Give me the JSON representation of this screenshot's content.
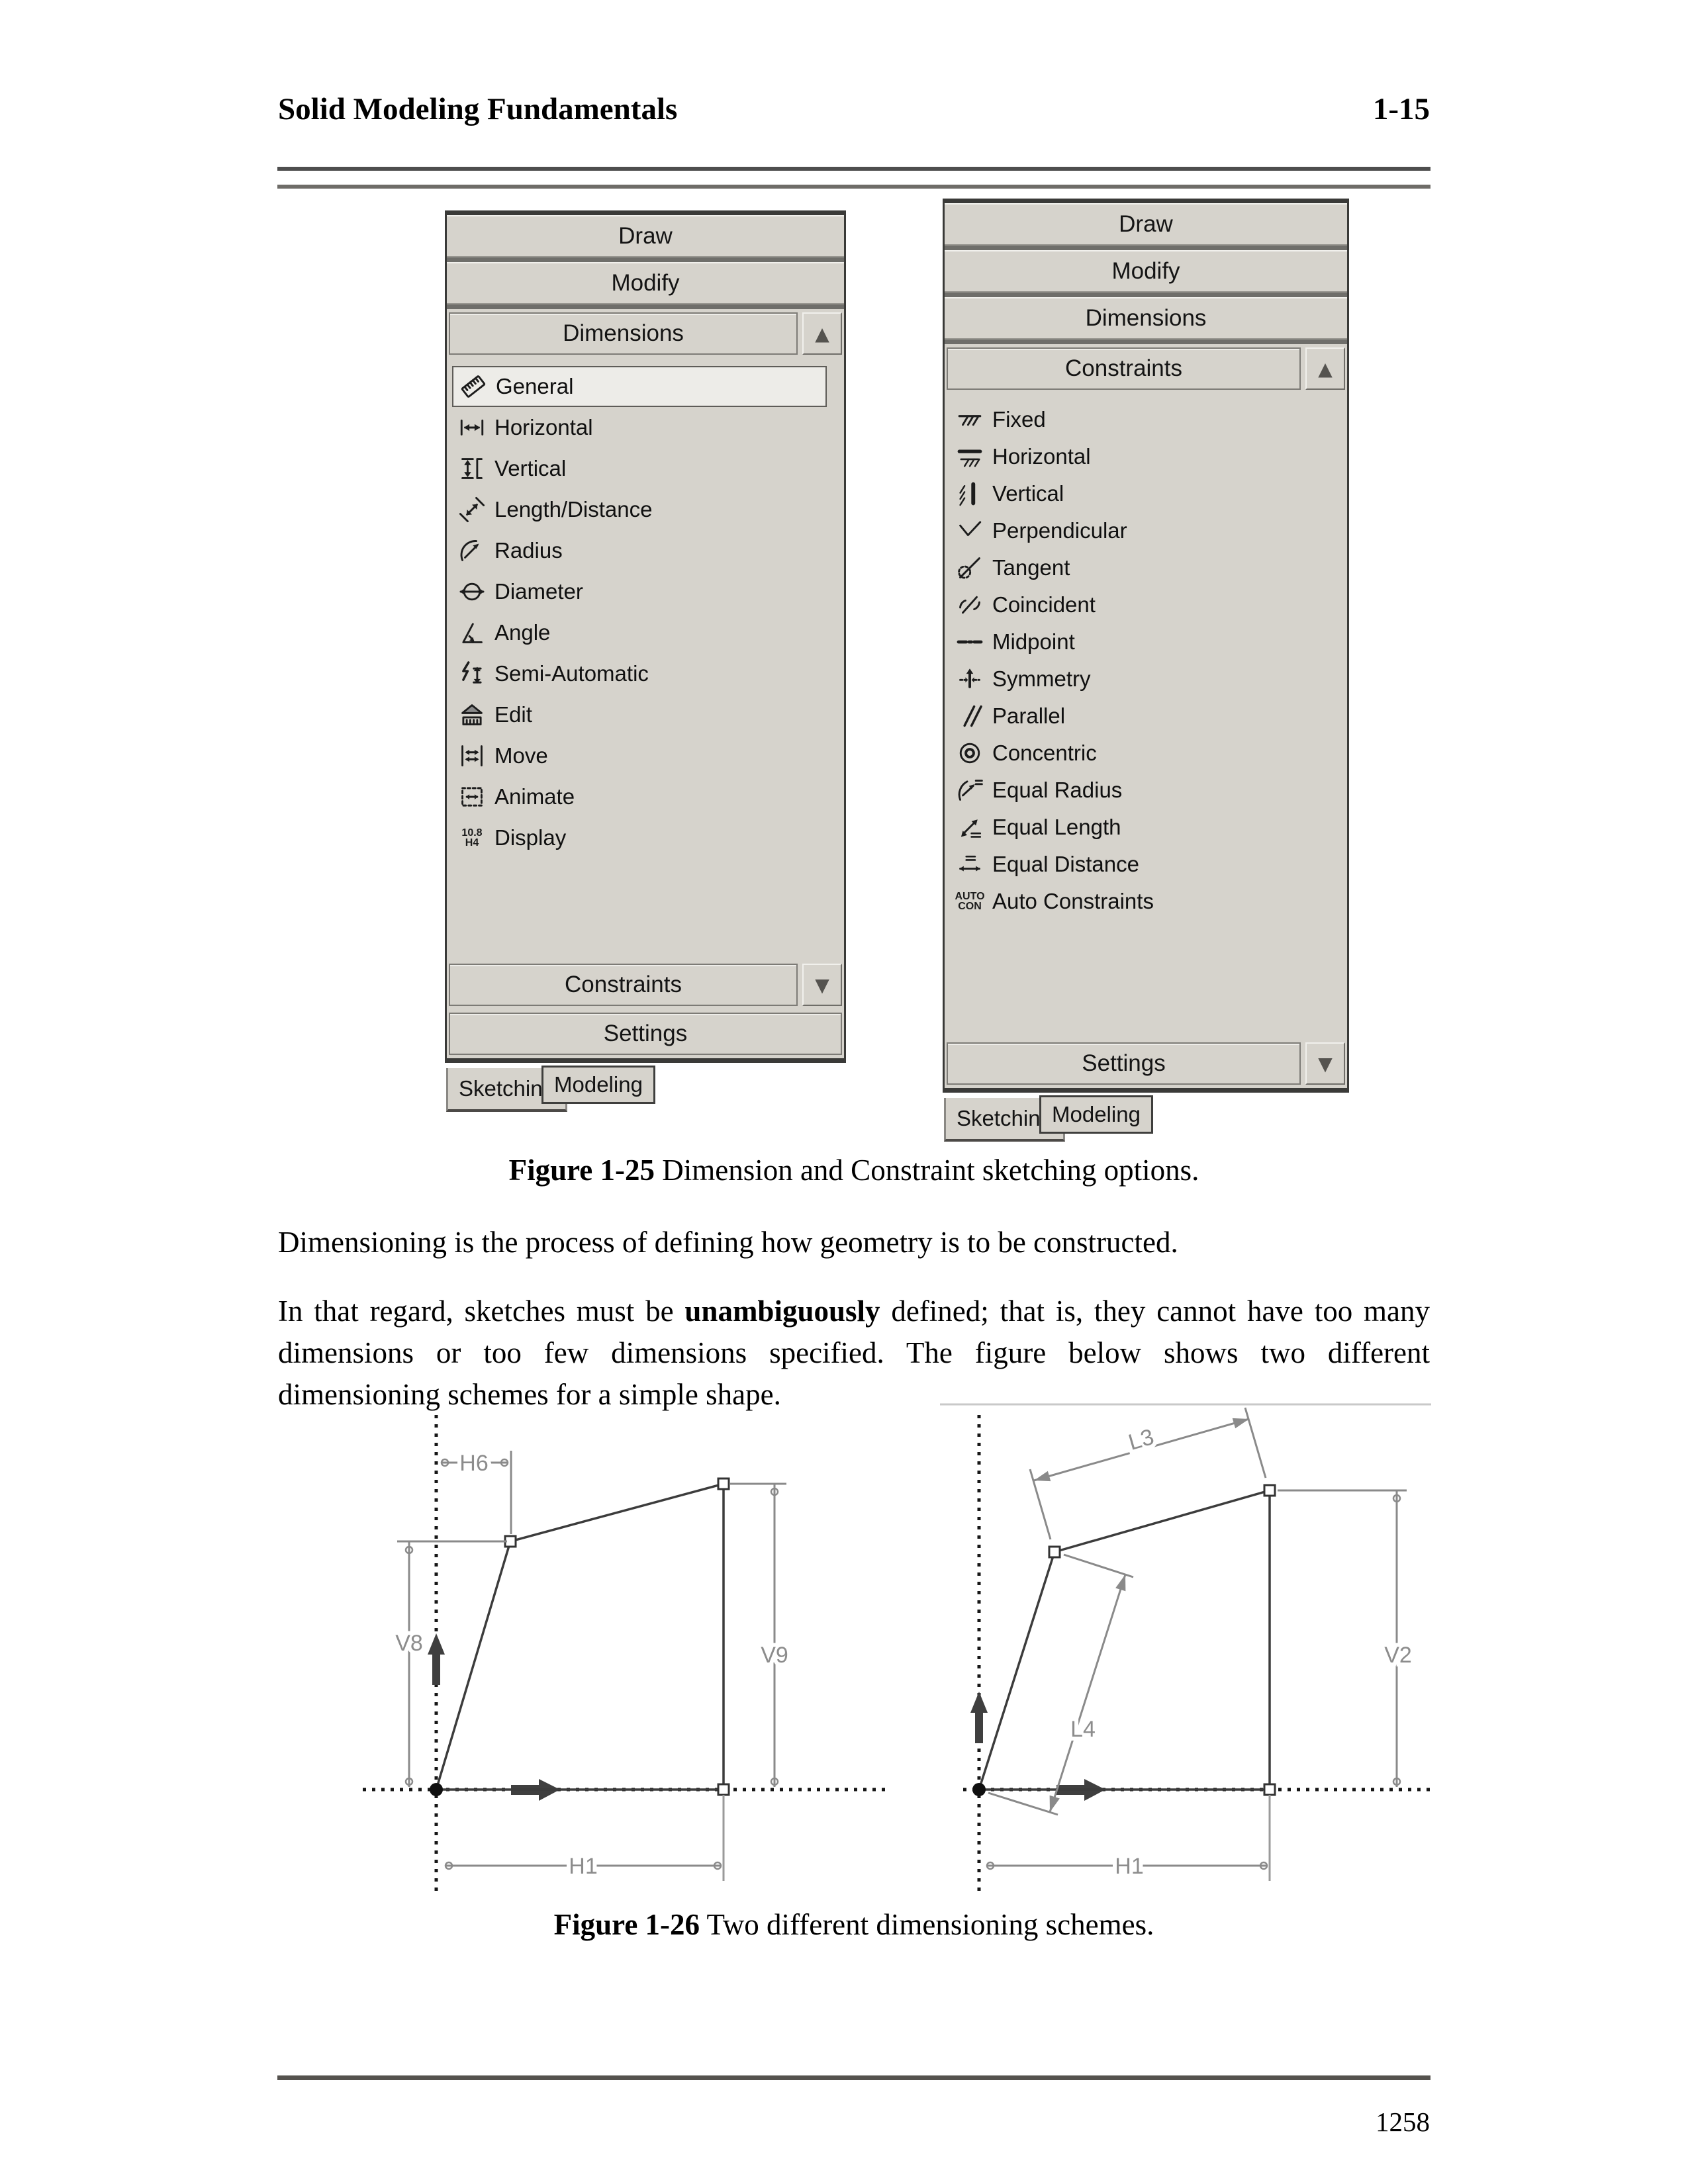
{
  "header": {
    "title": "Solid Modeling Fundamentals",
    "page_ref": "1-15"
  },
  "footer": {
    "page_number": "1258"
  },
  "figure_1_25": {
    "caption_label": "Figure 1-25",
    "caption_text": " Dimension and Constraint sketching options.",
    "panels": [
      {
        "name": "dimensions-toolbox",
        "top_sections": [
          "Draw",
          "Modify"
        ],
        "expanded_section": {
          "label": "Dimensions",
          "arrow": "up"
        },
        "items": [
          {
            "label": "General",
            "icon": "general-dimension-icon",
            "selected": true
          },
          {
            "label": "Horizontal",
            "icon": "horizontal-dimension-icon"
          },
          {
            "label": "Vertical",
            "icon": "vertical-dimension-icon"
          },
          {
            "label": "Length/Distance",
            "icon": "length-distance-icon"
          },
          {
            "label": "Radius",
            "icon": "radius-icon"
          },
          {
            "label": "Diameter",
            "icon": "diameter-icon"
          },
          {
            "label": "Angle",
            "icon": "angle-icon"
          },
          {
            "label": "Semi-Automatic",
            "icon": "semi-automatic-icon"
          },
          {
            "label": "Edit",
            "icon": "edit-dimension-icon"
          },
          {
            "label": "Move",
            "icon": "move-dimension-icon"
          },
          {
            "label": "Animate",
            "icon": "animate-dimension-icon"
          },
          {
            "label": "Display",
            "icon": "display-dimension-icon"
          }
        ],
        "bottom_sections": [
          {
            "label": "Constraints",
            "arrow": "down"
          },
          {
            "label": "Settings",
            "arrow": null
          }
        ],
        "tabs": [
          {
            "label": "Sketching",
            "active": true
          },
          {
            "label": "Modeling",
            "active": false
          }
        ]
      },
      {
        "name": "constraints-toolbox",
        "top_sections": [
          "Draw",
          "Modify",
          "Dimensions"
        ],
        "expanded_section": {
          "label": "Constraints",
          "arrow": "up"
        },
        "items": [
          {
            "label": "Fixed",
            "icon": "fixed-constraint-icon"
          },
          {
            "label": "Horizontal",
            "icon": "horizontal-constraint-icon"
          },
          {
            "label": "Vertical",
            "icon": "vertical-constraint-icon"
          },
          {
            "label": "Perpendicular",
            "icon": "perpendicular-icon"
          },
          {
            "label": "Tangent",
            "icon": "tangent-icon"
          },
          {
            "label": "Coincident",
            "icon": "coincident-icon"
          },
          {
            "label": "Midpoint",
            "icon": "midpoint-icon"
          },
          {
            "label": "Symmetry",
            "icon": "symmetry-icon"
          },
          {
            "label": "Parallel",
            "icon": "parallel-icon"
          },
          {
            "label": "Concentric",
            "icon": "concentric-icon"
          },
          {
            "label": "Equal Radius",
            "icon": "equal-radius-icon"
          },
          {
            "label": "Equal Length",
            "icon": "equal-length-icon"
          },
          {
            "label": "Equal Distance",
            "icon": "equal-distance-icon"
          },
          {
            "label": "Auto Constraints",
            "icon": "auto-constraints-icon"
          }
        ],
        "bottom_sections": [
          {
            "label": "Settings",
            "arrow": "down"
          }
        ],
        "tabs": [
          {
            "label": "Sketching",
            "active": true
          },
          {
            "label": "Modeling",
            "active": false
          }
        ]
      }
    ],
    "icon_text": {
      "display-dimension-icon": [
        "10.8",
        "H4"
      ],
      "auto-constraints-icon": [
        "AUTO",
        "CON"
      ]
    }
  },
  "body": {
    "paragraph_1": "Dimensioning is the process of defining how geometry is to be constructed.",
    "paragraph_2_before": "In that regard, sketches must be ",
    "paragraph_2_bold": "unambiguously",
    "paragraph_2_after": " defined; that is, they cannot have too many dimensions or too few dimensions specified. The figure below shows two different dimensioning schemes for a simple shape."
  },
  "figure_1_26": {
    "caption_label": "Figure 1-26",
    "caption_text": " Two different dimensioning schemes.",
    "left_diagram": {
      "dimension_labels": {
        "h6": "H6",
        "v8": "V8",
        "v9": "V9",
        "h1": "H1"
      }
    },
    "right_diagram": {
      "dimension_labels": {
        "l3": "L3",
        "l4": "L4",
        "v2": "V2",
        "h1": "H1"
      }
    }
  }
}
